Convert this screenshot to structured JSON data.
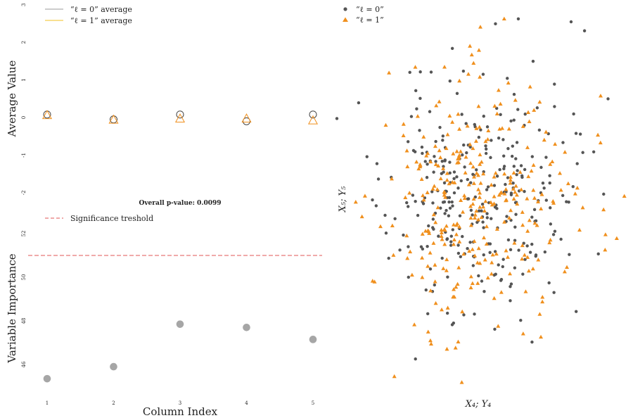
{
  "colors": {
    "grey": "#555555",
    "orange": "#F0901E",
    "red": "#E05555",
    "imp_point": "#A6A6A6"
  },
  "chart_data": [
    {
      "type": "scatter",
      "panel": "top-left",
      "ylabel": "Average Value",
      "ylim": [
        -2,
        3
      ],
      "yticks": [
        "-2",
        "-1",
        "0",
        "1",
        "2",
        "3"
      ],
      "legend": [
        "“ℓ = 0” average",
        "“ℓ = 1” average"
      ],
      "legend_position": "top-left",
      "x": [
        1,
        2,
        3,
        4,
        5
      ],
      "series": [
        {
          "name": "“ℓ = 0” average",
          "marker": "circle",
          "values": [
            0.08,
            -0.05,
            0.08,
            -0.1,
            0.08
          ]
        },
        {
          "name": "“ℓ = 1” average",
          "marker": "triangle",
          "values": [
            0.06,
            -0.06,
            -0.03,
            -0.03,
            -0.08
          ]
        }
      ]
    },
    {
      "type": "scatter",
      "panel": "bottom-left",
      "annotation": "Overall p-value: 0.0099",
      "legend": [
        "Significance treshold"
      ],
      "legend_position": "top-left",
      "xlabel": "Column Index",
      "ylabel": "Variable Importance",
      "xticks": [
        "1",
        "2",
        "3",
        "4",
        "5"
      ],
      "yticks": [
        "46",
        "48",
        "50",
        "52"
      ],
      "ylim": [
        45.4,
        52.2
      ],
      "threshold": 51.0,
      "x": [
        1,
        2,
        3,
        4,
        5
      ],
      "values": [
        45.35,
        45.9,
        47.85,
        47.7,
        47.15
      ]
    },
    {
      "type": "scatter",
      "panel": "right",
      "xlabel": "X₄; Y₄",
      "ylabel": "X₅; Y₅",
      "legend": [
        "“ℓ = 0”",
        "“ℓ = 1”"
      ],
      "legend_position": "top-left",
      "xlim": [
        -3.2,
        3.2
      ],
      "ylim": [
        -3.2,
        3.2
      ],
      "series": [
        {
          "name": "“ℓ = 0”",
          "marker": "dot",
          "n": 300,
          "seed": 11,
          "sd": 0.95,
          "outliers": [
            [
              0.85,
              3.05
            ],
            [
              -0.55,
              2.55
            ],
            [
              -1.0,
              2.15
            ],
            [
              2.45,
              0.8
            ],
            [
              2.1,
              0.6
            ],
            [
              -2.15,
              0.6
            ],
            [
              0.35,
              -2.2
            ],
            [
              0.9,
              -2.05
            ],
            [
              -1.9,
              -1.0
            ]
          ]
        },
        {
          "name": "“ℓ = 1”",
          "marker": "triangle",
          "n": 300,
          "seed": 29,
          "sd": 1.0,
          "outliers": [
            [
              0.55,
              3.05
            ],
            [
              -0.4,
              2.0
            ],
            [
              -2.6,
              -0.05
            ],
            [
              -2.2,
              -1.4
            ],
            [
              -1.0,
              -2.45
            ],
            [
              -0.35,
              -3.1
            ],
            [
              1.1,
              1.9
            ],
            [
              1.4,
              1.0
            ],
            [
              3.1,
              0.05
            ],
            [
              2.7,
              -0.6
            ],
            [
              -0.1,
              2.3
            ]
          ]
        }
      ]
    }
  ]
}
